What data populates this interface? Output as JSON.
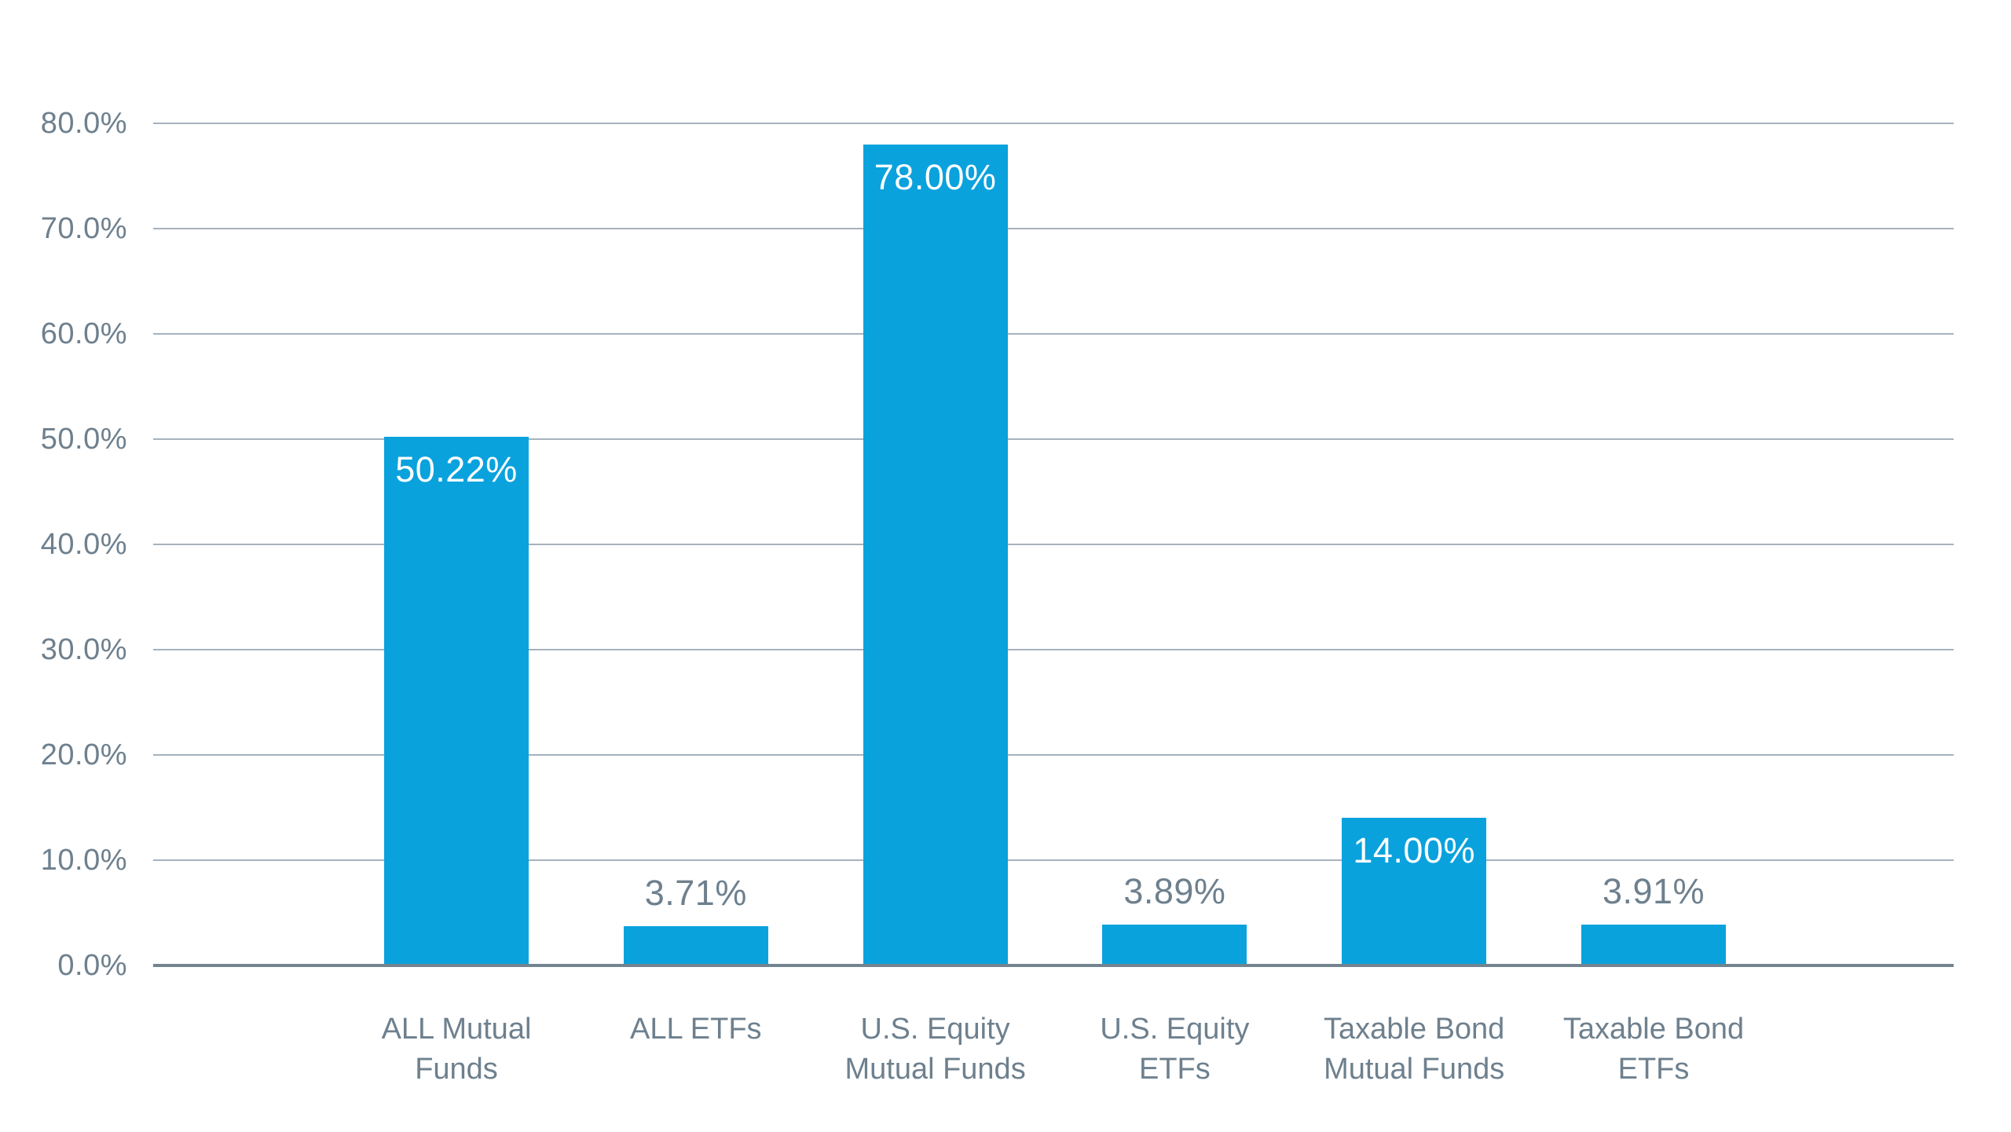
{
  "chart_data": {
    "type": "bar",
    "title": "",
    "xlabel": "",
    "ylabel": "",
    "categories": [
      "ALL Mutual\nFunds",
      "ALL ETFs",
      "U.S. Equity\nMutual Funds",
      "U.S. Equity\nETFs",
      "Taxable Bond\nMutual Funds",
      "Taxable Bond\nETFs"
    ],
    "values": [
      50.22,
      3.71,
      78.0,
      3.89,
      14.0,
      3.91
    ],
    "value_labels": [
      "50.22%",
      "3.71%",
      "78.00%",
      "3.89%",
      "14.00%",
      "3.91%"
    ],
    "value_label_placement": [
      "inside",
      "above",
      "inside",
      "above",
      "inside",
      "above"
    ],
    "ylim": [
      0,
      80
    ],
    "ytick_step": 10,
    "ytick_labels": [
      "0.0%",
      "10.0%",
      "20.0%",
      "30.0%",
      "40.0%",
      "50.0%",
      "60.0%",
      "70.0%",
      "80.0%"
    ],
    "grid": "horizontal",
    "legend": "none",
    "colors": {
      "bar": "#0aa2dd",
      "value_label_inside": "#ffffff",
      "value_label_above": "#6e808e",
      "axis_text": "#6e808e",
      "gridline": "#a6b2bd",
      "baseline": "#73838f",
      "background": "#ffffff"
    }
  }
}
